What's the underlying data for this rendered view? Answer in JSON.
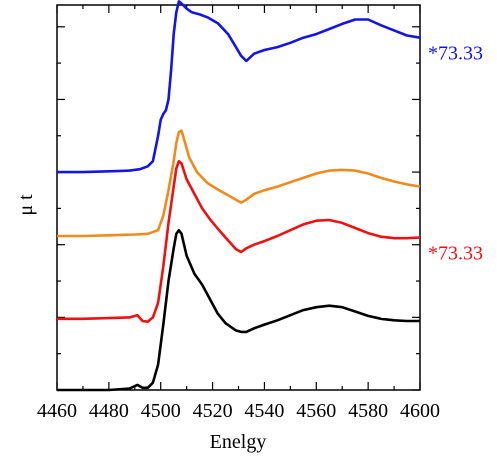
{
  "chart_data": {
    "type": "line",
    "title": "",
    "xlabel": "Enelgy",
    "ylabel": "μ t",
    "xlim": [
      4460,
      4600
    ],
    "ylim": [
      0,
      5.3
    ],
    "x_ticks": [
      4460,
      4480,
      4500,
      4520,
      4540,
      4560,
      4580,
      4600
    ],
    "grid": false,
    "legend": "none",
    "annotations": [
      {
        "text": "*73.33",
        "color": "#1010ee",
        "series_index": 0
      },
      {
        "text": "*73.33",
        "color": "#ee1111",
        "series_index": 2
      }
    ],
    "series": [
      {
        "color": "#1414e6",
        "x": [
          4460,
          4470,
          4480,
          4488,
          4492,
          4495,
          4497,
          4499,
          4500,
          4501,
          4502,
          4503,
          4504,
          4505,
          4506,
          4507,
          4508,
          4510,
          4512,
          4515,
          4518,
          4522,
          4526,
          4529,
          4531,
          4533,
          4536,
          4540,
          4545,
          4550,
          4555,
          4560,
          4565,
          4570,
          4575,
          4580,
          4585,
          4590,
          4595,
          4600
        ],
        "y": [
          3.0,
          3.0,
          3.01,
          3.02,
          3.04,
          3.08,
          3.15,
          3.5,
          3.72,
          3.8,
          3.85,
          4.0,
          4.4,
          4.9,
          5.2,
          5.35,
          5.32,
          5.25,
          5.2,
          5.17,
          5.13,
          5.05,
          4.9,
          4.72,
          4.6,
          4.53,
          4.63,
          4.68,
          4.72,
          4.78,
          4.85,
          4.9,
          4.97,
          5.04,
          5.1,
          5.1,
          5.02,
          4.95,
          4.88,
          4.85
        ]
      },
      {
        "color": "#f08a1c",
        "x": [
          4460,
          4470,
          4480,
          4490,
          4495,
          4499,
          4501,
          4503,
          4505,
          4506,
          4507,
          4508,
          4509,
          4511,
          4514,
          4518,
          4522,
          4526,
          4529,
          4531,
          4533,
          4536,
          4540,
          4545,
          4550,
          4555,
          4560,
          4565,
          4570,
          4575,
          4580,
          4585,
          4590,
          4595,
          4600
        ],
        "y": [
          2.12,
          2.12,
          2.13,
          2.14,
          2.15,
          2.2,
          2.4,
          2.75,
          3.15,
          3.4,
          3.55,
          3.57,
          3.45,
          3.2,
          3.0,
          2.85,
          2.76,
          2.68,
          2.62,
          2.58,
          2.62,
          2.7,
          2.75,
          2.8,
          2.86,
          2.92,
          2.98,
          3.02,
          3.03,
          3.02,
          2.98,
          2.92,
          2.87,
          2.83,
          2.8
        ]
      },
      {
        "color": "#ee1111",
        "x": [
          4460,
          4470,
          4480,
          4488,
          4491,
          4493,
          4495,
          4497,
          4499,
          4501,
          4503,
          4505,
          4506,
          4507,
          4508,
          4510,
          4513,
          4516,
          4519,
          4522,
          4525,
          4527,
          4529,
          4531,
          4533,
          4536,
          4540,
          4545,
          4550,
          4555,
          4560,
          4565,
          4570,
          4575,
          4580,
          4585,
          4590,
          4595,
          4600
        ],
        "y": [
          0.98,
          0.98,
          0.99,
          1.0,
          1.03,
          0.95,
          0.94,
          1.0,
          1.2,
          1.7,
          2.3,
          2.8,
          3.05,
          3.15,
          3.12,
          2.9,
          2.7,
          2.5,
          2.35,
          2.22,
          2.1,
          2.02,
          1.94,
          1.9,
          1.95,
          2.0,
          2.05,
          2.12,
          2.2,
          2.28,
          2.33,
          2.34,
          2.3,
          2.23,
          2.16,
          2.11,
          2.09,
          2.09,
          2.1
        ]
      },
      {
        "color": "#000000",
        "x": [
          4460,
          4470,
          4480,
          4488,
          4491,
          4493,
          4495,
          4497,
          4499,
          4501,
          4503,
          4505,
          4506,
          4507,
          4508,
          4510,
          4513,
          4516,
          4519,
          4522,
          4525,
          4527,
          4529,
          4531,
          4533,
          4536,
          4540,
          4545,
          4550,
          4555,
          4560,
          4565,
          4570,
          4575,
          4580,
          4585,
          4590,
          4595,
          4600
        ],
        "y": [
          0.0,
          0.0,
          0.0,
          0.02,
          0.07,
          0.03,
          0.03,
          0.1,
          0.35,
          0.9,
          1.5,
          1.95,
          2.15,
          2.2,
          2.15,
          1.85,
          1.6,
          1.45,
          1.25,
          1.05,
          0.92,
          0.87,
          0.82,
          0.8,
          0.8,
          0.85,
          0.9,
          0.96,
          1.03,
          1.1,
          1.14,
          1.16,
          1.14,
          1.08,
          1.02,
          0.98,
          0.96,
          0.95,
          0.95
        ]
      }
    ]
  }
}
